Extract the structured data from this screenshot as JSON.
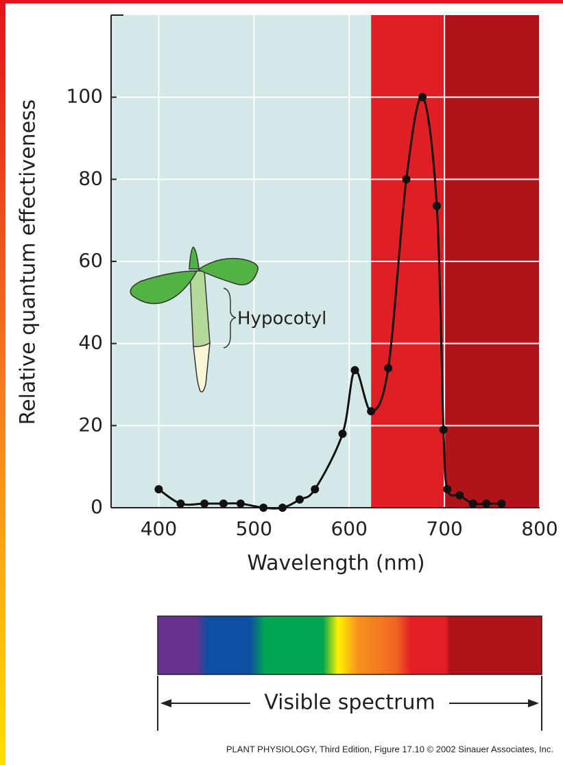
{
  "chart_data": {
    "type": "line",
    "xlabel": "Wavelength (nm)",
    "ylabel": "Relative quantum effectiveness",
    "x": [
      400,
      423,
      448,
      468,
      486,
      510,
      530,
      548,
      564,
      593,
      606,
      623,
      641,
      660,
      677,
      692,
      699,
      703,
      716,
      730,
      744,
      760
    ],
    "series": [
      {
        "color": "#111111",
        "values": [
          4.5,
          1,
          1,
          1,
          1,
          0,
          0,
          2,
          4.5,
          18,
          33.5,
          23.5,
          34,
          80,
          100,
          73.5,
          19,
          4.5,
          3,
          1,
          1,
          1
        ]
      }
    ],
    "xlim": [
      350,
      800
    ],
    "xticks": [
      400,
      500,
      600,
      700,
      800
    ],
    "ylim": [
      0,
      120
    ],
    "yticks": [
      0,
      20,
      40,
      60,
      80,
      100
    ],
    "grid": true,
    "shaded_regions": [
      {
        "from": 350,
        "to": 623,
        "color": "#d4e8e7"
      },
      {
        "from": 623,
        "to": 700,
        "color": "#e01e25"
      },
      {
        "from": 700,
        "to": 800,
        "color": "#b0141a"
      }
    ],
    "annotation": "Hypocotyl",
    "spectrum_label": "Visible spectrum",
    "credit": "PLANT PHYSIOLOGY, Third Edition, Figure 17.10  © 2002 Sinauer Associates, Inc."
  }
}
